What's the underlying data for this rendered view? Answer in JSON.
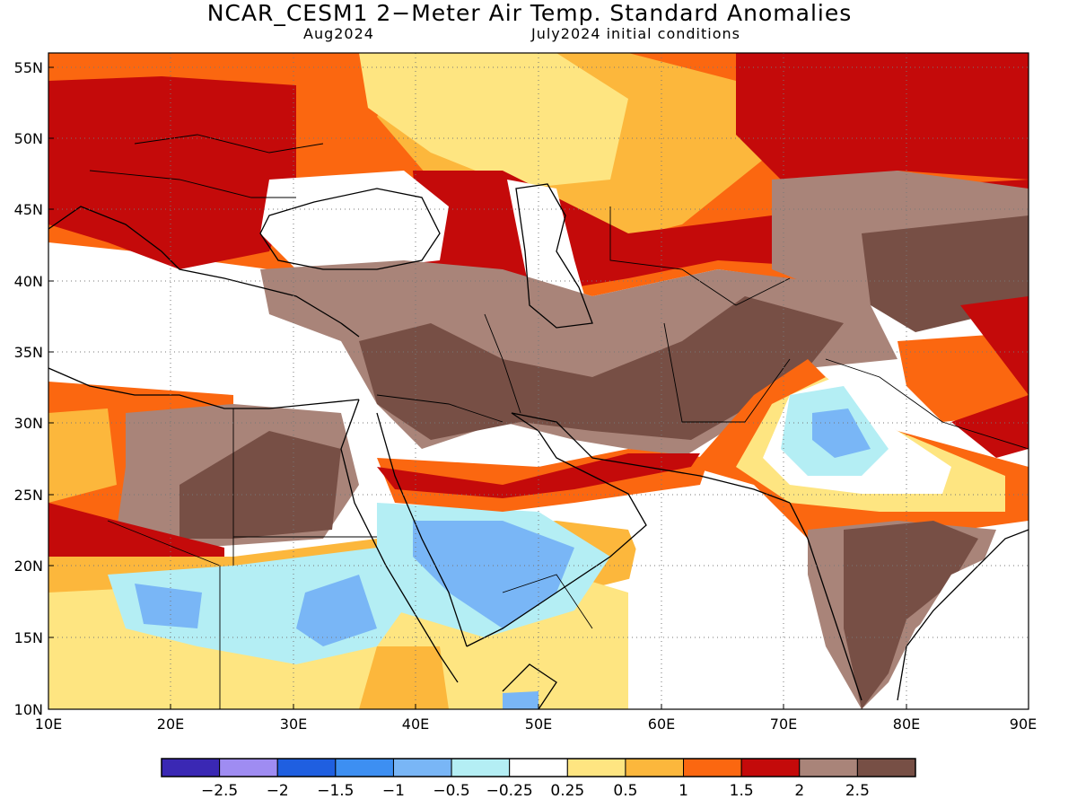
{
  "title": "NCAR_CESM1 2−Meter Air Temp. Standard Anomalies",
  "subtitle_left": "Aug2024",
  "subtitle_right": "July2024 initial conditions",
  "lat_labels": [
    "55N",
    "50N",
    "45N",
    "40N",
    "35N",
    "30N",
    "25N",
    "20N",
    "15N",
    "10N"
  ],
  "lon_labels": [
    "10E",
    "20E",
    "30E",
    "40E",
    "50E",
    "60E",
    "70E",
    "80E",
    "90E"
  ],
  "colorbar": {
    "colors": [
      "#3a28b4",
      "#9f8cf2",
      "#1f5fe0",
      "#3d8ff2",
      "#79b6f6",
      "#b4eef4",
      "#ffffff",
      "#fee581",
      "#fcb73c",
      "#fb6710",
      "#c40a0a",
      "#a98479",
      "#774f45"
    ],
    "labels": [
      "−2.5",
      "−2",
      "−1.5",
      "−1",
      "−0.5",
      "−0.25",
      "0.25",
      "0.5",
      "1",
      "1.5",
      "2",
      "2.5"
    ]
  },
  "map": {
    "lon_range": [
      10,
      90
    ],
    "lat_range": [
      10,
      56
    ],
    "field_regions": [
      {
        "name": "northern-europe-warm",
        "color": "#fb6710"
      },
      {
        "name": "europe-strong-warm",
        "color": "#c40a0a"
      },
      {
        "name": "black-sea-cool",
        "color": "#ffffff"
      },
      {
        "name": "russia-moderate-warm",
        "color": "#fcb73c"
      },
      {
        "name": "middle-east-very-warm",
        "color": "#774f45"
      },
      {
        "name": "north-africa-warm",
        "color": "#fb6710"
      },
      {
        "name": "sahel-cool",
        "color": "#79b6f6"
      },
      {
        "name": "arabia-cool",
        "color": "#79b6f6"
      },
      {
        "name": "thar-cool",
        "color": "#79b6f6"
      },
      {
        "name": "india-very-warm",
        "color": "#774f45"
      },
      {
        "name": "central-asia-very-warm",
        "color": "#774f45"
      }
    ]
  }
}
